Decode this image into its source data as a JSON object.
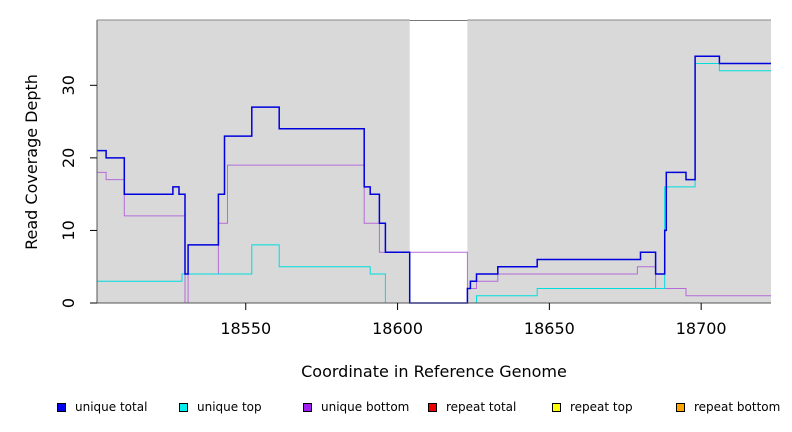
{
  "chart_data": {
    "type": "line",
    "xlabel": "Coordinate in Reference Genome",
    "ylabel": "Read Coverage Depth",
    "xlim": [
      18501,
      18723
    ],
    "ylim": [
      0,
      39
    ],
    "x_ticks": [
      18550,
      18600,
      18650,
      18700
    ],
    "x_tick_labels": [
      "18550",
      "18600",
      "18650",
      "18700"
    ],
    "y_ticks": [
      0,
      10,
      20,
      30
    ],
    "y_tick_labels": [
      "0",
      "10",
      "20",
      "30"
    ],
    "grid": false,
    "background": "#d9d9d9",
    "gap_region": [
      18604,
      18623
    ],
    "legend_position": "bottom",
    "series": [
      {
        "name": "unique total",
        "color": "#0000dd",
        "step": true,
        "x": [
          18501,
          18504,
          18510,
          18526,
          18528,
          18530,
          18531,
          18541,
          18543,
          18546,
          18552,
          18561,
          18589,
          18591,
          18594,
          18596,
          18604,
          18623,
          18624,
          18626,
          18633,
          18646,
          18680,
          18685,
          18688,
          18688.5,
          18695,
          18698,
          18706,
          18723
        ],
        "values": [
          21,
          20,
          15,
          16,
          15,
          4,
          8,
          15,
          23,
          23,
          27,
          24,
          16,
          15,
          11,
          7,
          0,
          2,
          3,
          4,
          5,
          6,
          7,
          4,
          10,
          18,
          17,
          34,
          33,
          33
        ]
      },
      {
        "name": "unique top",
        "color": "#00dddd",
        "step": true,
        "x": [
          18501,
          18529,
          18552,
          18561,
          18591,
          18596,
          18626,
          18646,
          18688,
          18698,
          18706,
          18723
        ],
        "values": [
          3,
          4,
          8,
          5,
          4,
          0,
          1,
          2,
          16,
          33,
          32,
          32
        ]
      },
      {
        "name": "unique bottom",
        "color": "#b46bd9",
        "step": true,
        "x": [
          18501,
          18504,
          18510,
          18530,
          18531,
          18541,
          18544,
          18589,
          18594,
          18623,
          18626,
          18633,
          18679,
          18685,
          18695,
          18723
        ],
        "values": [
          18,
          17,
          12,
          0,
          4,
          11,
          19,
          11,
          7,
          2,
          3,
          4,
          5,
          2,
          1,
          1
        ]
      },
      {
        "name": "repeat total",
        "color": "#ee0000",
        "step": true,
        "x": [
          18501,
          18723
        ],
        "values": [
          0,
          0
        ]
      },
      {
        "name": "repeat top",
        "color": "#ffff00",
        "step": true,
        "x": [
          18501,
          18723
        ],
        "values": [
          0,
          0
        ]
      },
      {
        "name": "repeat bottom",
        "color": "#ff9900",
        "step": true,
        "x": [
          18501,
          18723
        ],
        "values": [
          0,
          0
        ]
      }
    ]
  },
  "legend": {
    "items": [
      {
        "label": "unique total",
        "color": "#0000ee"
      },
      {
        "label": "unique top",
        "color": "#00eeee"
      },
      {
        "label": "unique bottom",
        "color": "#a020f0"
      },
      {
        "label": "repeat total",
        "color": "#ee0000"
      },
      {
        "label": "repeat top",
        "color": "#ffff00"
      },
      {
        "label": "repeat bottom",
        "color": "#ffa500"
      }
    ]
  }
}
